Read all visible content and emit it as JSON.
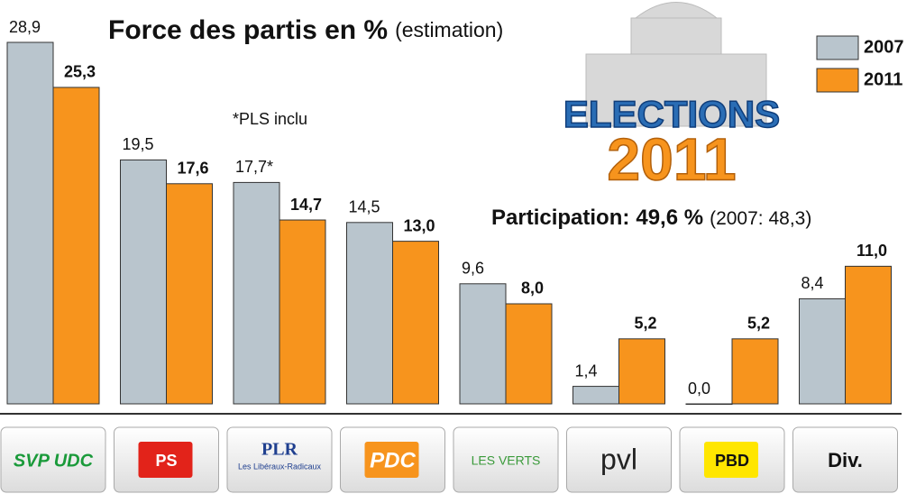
{
  "chart_data": {
    "type": "bar",
    "title": "Force des partis en %",
    "subtitle": "(estimation)",
    "annotation": "*PLS inclu",
    "participation_label": "Participation:",
    "participation": "49,6 %",
    "participation_2007": "(2007: 48,3)",
    "badge_top": "ELECTIONS",
    "badge_bottom": "2011",
    "categories": [
      "SVP UDC",
      "PS",
      "PLR",
      "PDC",
      "LES VERTS",
      "pvl",
      "PBD",
      "Div."
    ],
    "category_sublabel_plr": "Les Libéraux-Radicaux",
    "series": [
      {
        "name": "2007",
        "color": "#b9c5cd",
        "values": [
          28.9,
          19.5,
          17.7,
          14.5,
          9.6,
          1.4,
          0.0,
          8.4
        ],
        "value_labels": [
          "28,9",
          "19,5",
          "17,7*",
          "14,5",
          "9,6",
          "1,4",
          "0,0",
          "8,4"
        ]
      },
      {
        "name": "2011",
        "color": "#f7941d",
        "values": [
          25.3,
          17.6,
          14.7,
          13.0,
          8.0,
          5.2,
          5.2,
          11.0
        ],
        "value_labels": [
          "25,3",
          "17,6",
          "14,7",
          "13,0",
          "8,0",
          "5,2",
          "5,2",
          "11,0"
        ]
      }
    ],
    "ylim": [
      0,
      28.9
    ],
    "legend": "top-right"
  }
}
